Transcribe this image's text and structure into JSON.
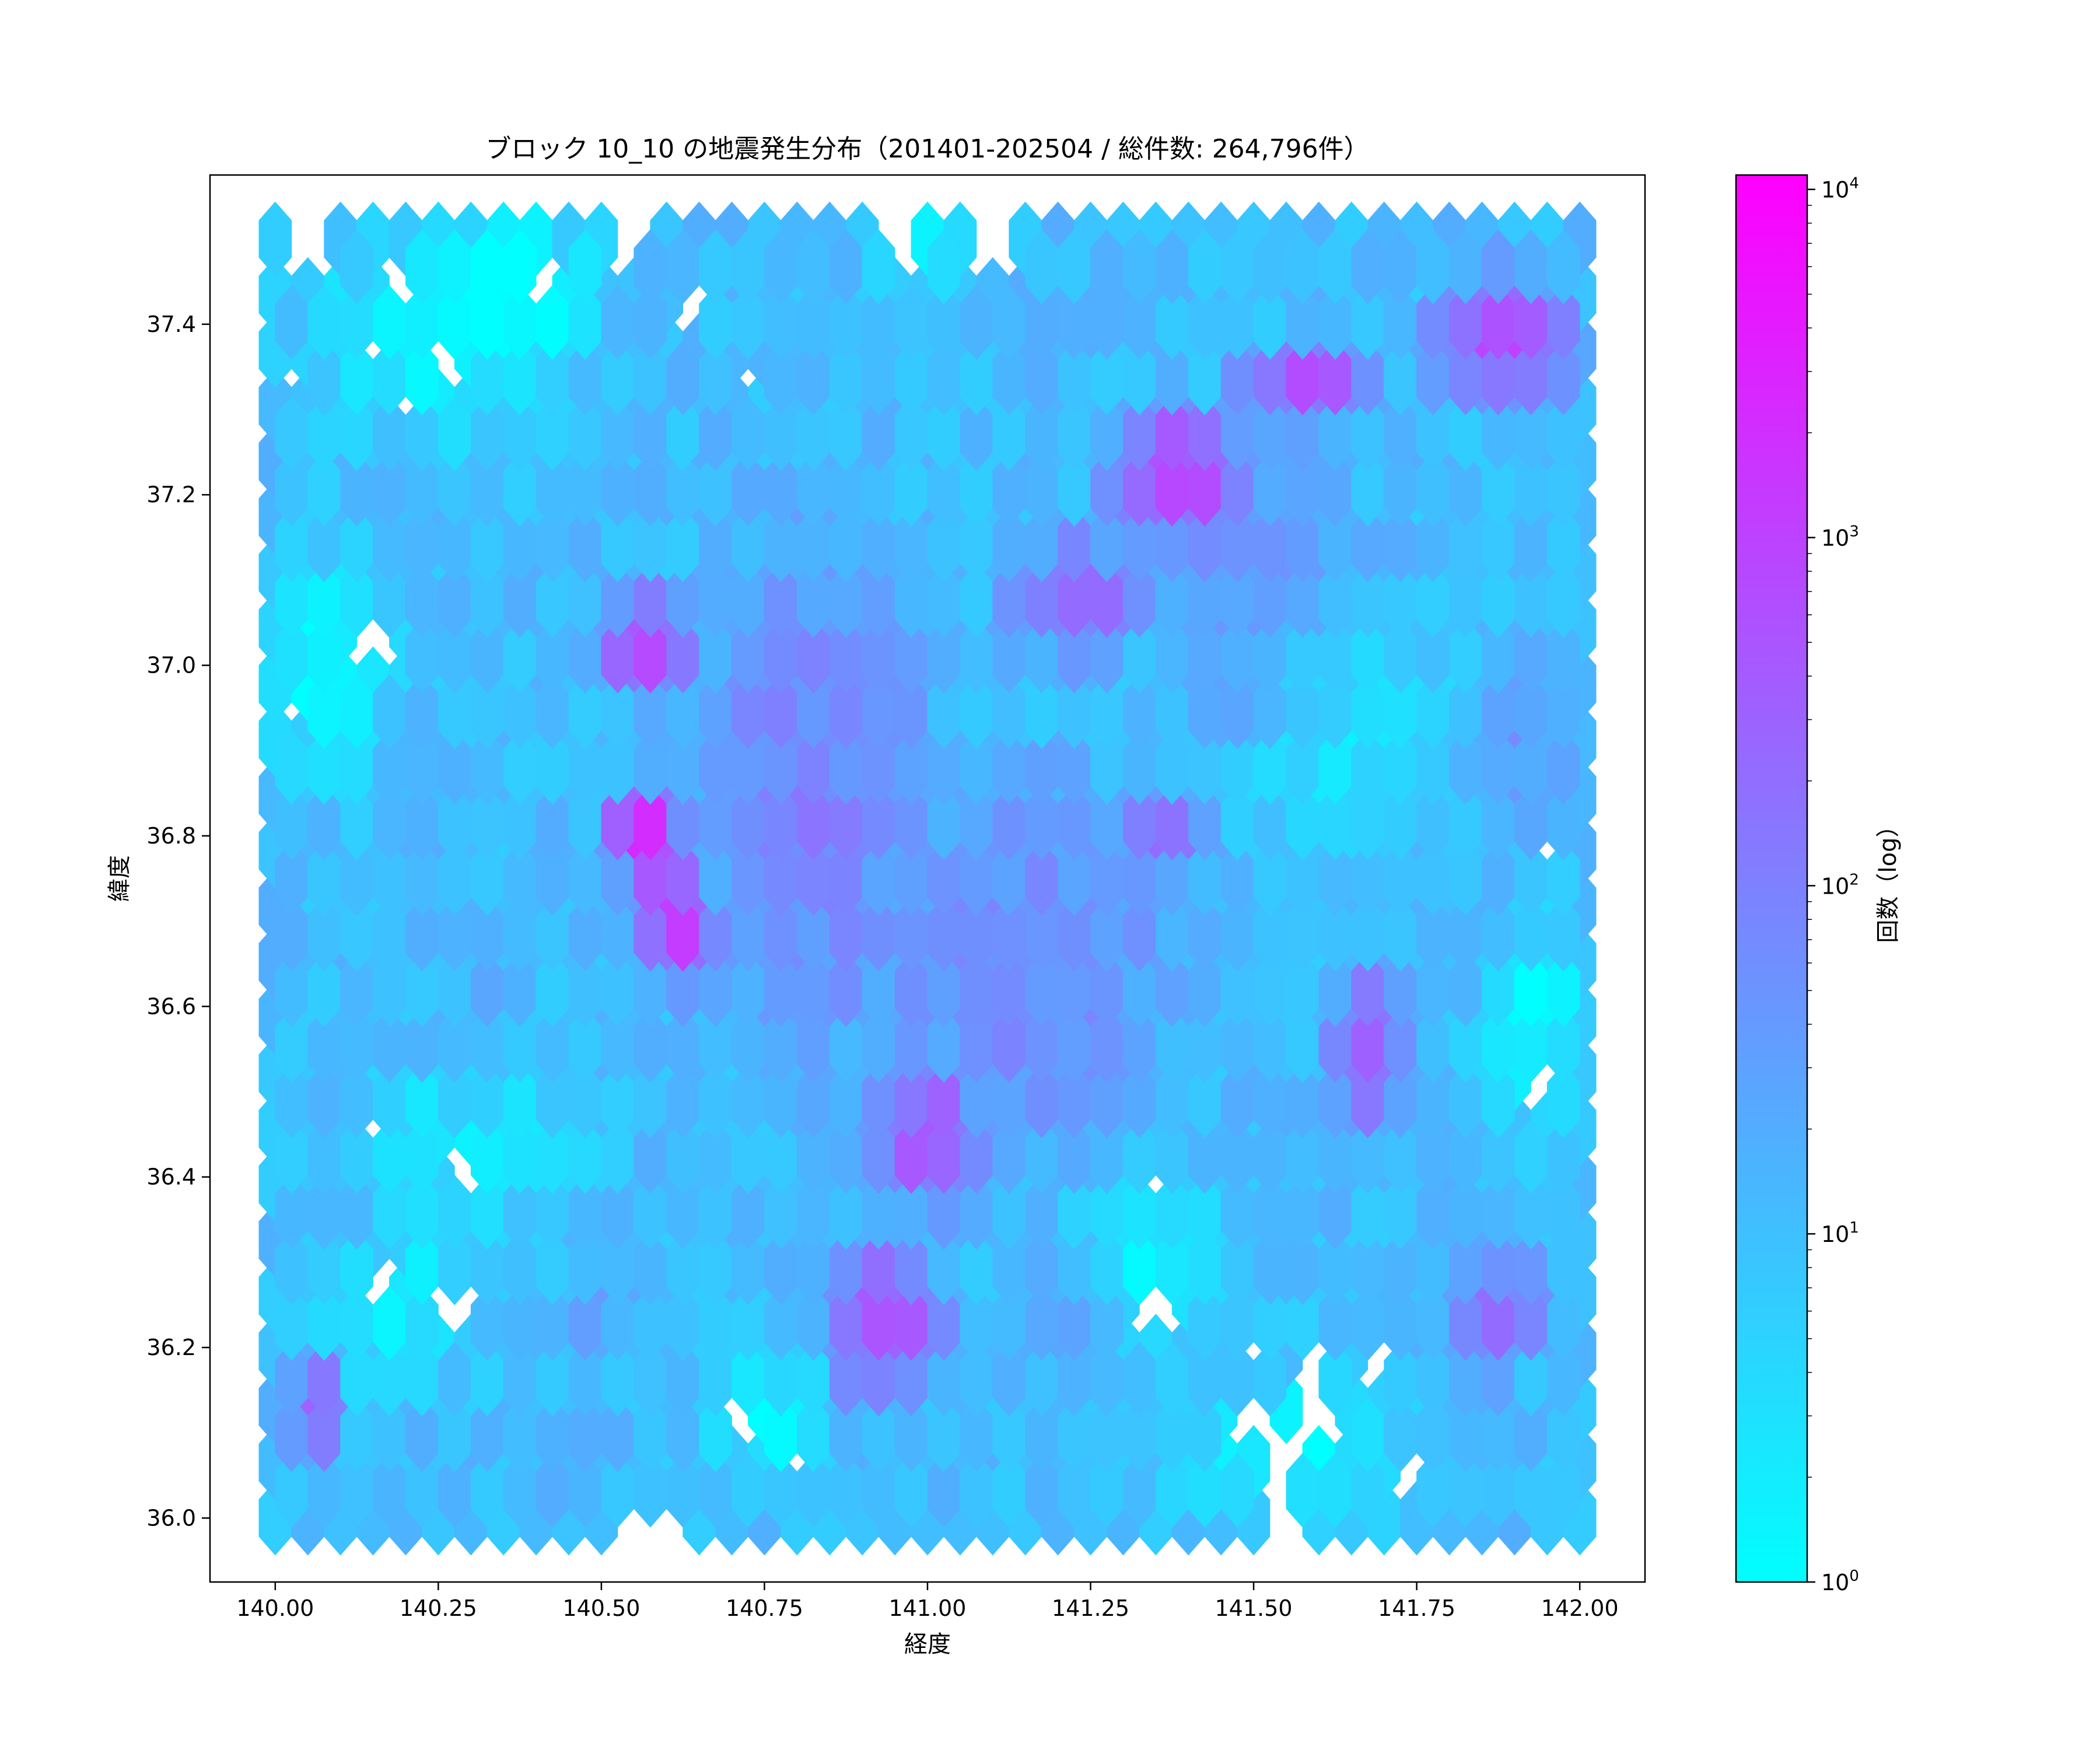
{
  "chart_data": {
    "type": "heatmap",
    "subtype": "hexbin",
    "title": "ブロック 10_10 の地震発生分布（201401-202504 / 総件数: 264,796件）",
    "xlabel": "経度",
    "ylabel": "緯度",
    "xlim": [
      139.9,
      142.1
    ],
    "ylim": [
      35.925,
      37.575
    ],
    "x_ticks": [
      "140.00",
      "140.25",
      "140.50",
      "140.75",
      "141.00",
      "141.25",
      "141.50",
      "141.75",
      "142.00"
    ],
    "y_ticks": [
      "36.0",
      "36.2",
      "36.4",
      "36.6",
      "36.8",
      "37.0",
      "37.2",
      "37.4"
    ],
    "colorbar": {
      "label": "回数（log）",
      "scale": "log",
      "range": [
        1,
        11000
      ],
      "ticks": [
        {
          "value": 1,
          "base": "10",
          "exp": "0"
        },
        {
          "value": 10,
          "base": "10",
          "exp": "1"
        },
        {
          "value": 100,
          "base": "10",
          "exp": "2"
        },
        {
          "value": 1000,
          "base": "10",
          "exp": "3"
        },
        {
          "value": 10000,
          "base": "10",
          "exp": "4"
        }
      ],
      "colormap_low": "#00ffff",
      "colormap_high": "#ff00ff"
    },
    "extent": {
      "lon": [
        140.0,
        142.0
      ],
      "lat": [
        36.0,
        37.5
      ]
    },
    "gridsize": 40,
    "background_log_count": 1.05,
    "hotspots": [
      {
        "lon": 140.57,
        "lat": 36.8,
        "log_count": 4.0,
        "sigma_lon": 0.05,
        "sigma_lat": 0.06
      },
      {
        "lon": 140.62,
        "lat": 36.7,
        "log_count": 3.8,
        "sigma_lon": 0.05,
        "sigma_lat": 0.06
      },
      {
        "lon": 140.57,
        "lat": 37.02,
        "log_count": 3.1,
        "sigma_lon": 0.07,
        "sigma_lat": 0.06
      },
      {
        "lon": 141.38,
        "lat": 37.22,
        "log_count": 3.2,
        "sigma_lon": 0.1,
        "sigma_lat": 0.08
      },
      {
        "lon": 141.23,
        "lat": 37.08,
        "log_count": 2.6,
        "sigma_lon": 0.12,
        "sigma_lat": 0.07
      },
      {
        "lon": 141.58,
        "lat": 37.33,
        "log_count": 3.0,
        "sigma_lon": 0.1,
        "sigma_lat": 0.05
      },
      {
        "lon": 141.88,
        "lat": 37.38,
        "log_count": 3.2,
        "sigma_lon": 0.1,
        "sigma_lat": 0.07
      },
      {
        "lon": 141.0,
        "lat": 36.45,
        "log_count": 2.9,
        "sigma_lon": 0.09,
        "sigma_lat": 0.08
      },
      {
        "lon": 140.93,
        "lat": 36.23,
        "log_count": 3.0,
        "sigma_lon": 0.09,
        "sigma_lat": 0.08
      },
      {
        "lon": 141.37,
        "lat": 36.8,
        "log_count": 2.6,
        "sigma_lon": 0.08,
        "sigma_lat": 0.05
      },
      {
        "lon": 140.06,
        "lat": 36.13,
        "log_count": 2.8,
        "sigma_lon": 0.05,
        "sigma_lat": 0.06
      },
      {
        "lon": 141.68,
        "lat": 36.55,
        "log_count": 2.6,
        "sigma_lon": 0.06,
        "sigma_lat": 0.1
      },
      {
        "lon": 141.88,
        "lat": 36.25,
        "log_count": 2.4,
        "sigma_lon": 0.08,
        "sigma_lat": 0.08
      },
      {
        "lon": 140.83,
        "lat": 36.85,
        "log_count": 2.1,
        "sigma_lon": 0.2,
        "sigma_lat": 0.35
      },
      {
        "lon": 141.15,
        "lat": 36.65,
        "log_count": 2.0,
        "sigma_lon": 0.25,
        "sigma_lat": 0.25
      },
      {
        "lon": 141.55,
        "lat": 37.05,
        "log_count": 1.9,
        "sigma_lon": 0.2,
        "sigma_lat": 0.2
      },
      {
        "lon": 140.3,
        "lat": 36.55,
        "log_count": 1.4,
        "sigma_lon": 0.15,
        "sigma_lat": 0.15
      },
      {
        "lon": 140.5,
        "lat": 36.25,
        "log_count": 1.4,
        "sigma_lon": 0.12,
        "sigma_lat": 0.12
      },
      {
        "lon": 141.2,
        "lat": 36.25,
        "log_count": 1.5,
        "sigma_lon": 0.12,
        "sigma_lat": 0.1
      },
      {
        "lon": 141.9,
        "lat": 36.9,
        "log_count": 1.7,
        "sigma_lon": 0.1,
        "sigma_lat": 0.15
      }
    ],
    "cold_zones": [
      {
        "lon": 140.25,
        "lat": 37.4,
        "sigma_lon": 0.12,
        "sigma_lat": 0.08,
        "depth": 1.0
      },
      {
        "lon": 140.08,
        "lat": 37.0,
        "sigma_lon": 0.07,
        "sigma_lat": 0.08,
        "depth": 1.0
      },
      {
        "lon": 140.3,
        "lat": 36.45,
        "sigma_lon": 0.1,
        "sigma_lat": 0.06,
        "depth": 0.9
      },
      {
        "lon": 140.2,
        "lat": 36.25,
        "sigma_lon": 0.08,
        "sigma_lat": 0.06,
        "depth": 0.8
      },
      {
        "lon": 141.55,
        "lat": 36.08,
        "sigma_lon": 0.1,
        "sigma_lat": 0.06,
        "depth": 1.0
      },
      {
        "lon": 141.62,
        "lat": 36.95,
        "sigma_lon": 0.1,
        "sigma_lat": 0.1,
        "depth": 0.9
      },
      {
        "lon": 141.93,
        "lat": 36.58,
        "sigma_lon": 0.05,
        "sigma_lat": 0.08,
        "depth": 1.0
      },
      {
        "lon": 141.35,
        "lat": 36.3,
        "sigma_lon": 0.07,
        "sigma_lat": 0.06,
        "depth": 0.8
      },
      {
        "lon": 140.75,
        "lat": 36.12,
        "sigma_lon": 0.06,
        "sigma_lat": 0.05,
        "depth": 0.9
      },
      {
        "lon": 140.4,
        "lat": 37.45,
        "sigma_lon": 0.06,
        "sigma_lat": 0.05,
        "depth": 0.8
      },
      {
        "lon": 141.0,
        "lat": 37.48,
        "sigma_lon": 0.06,
        "sigma_lat": 0.04,
        "depth": 0.7
      }
    ],
    "empty_cells": [
      [
        140.19,
        37.45
      ],
      [
        140.41,
        37.45
      ],
      [
        140.64,
        37.42
      ],
      [
        140.15,
        37.36
      ],
      [
        140.23,
        37.36
      ],
      [
        140.21,
        37.3
      ],
      [
        140.28,
        37.33
      ],
      [
        140.72,
        37.33
      ],
      [
        140.03,
        37.33
      ],
      [
        140.13,
        37.05
      ],
      [
        140.15,
        37.02
      ],
      [
        140.03,
        36.95
      ],
      [
        140.17,
        36.46
      ],
      [
        140.28,
        36.41
      ],
      [
        140.17,
        36.28
      ],
      [
        140.28,
        36.24
      ],
      [
        140.26,
        36.26
      ],
      [
        140.69,
        36.14
      ],
      [
        140.74,
        36.09
      ],
      [
        140.78,
        36.07
      ],
      [
        141.93,
        36.78
      ],
      [
        141.93,
        36.53
      ],
      [
        141.93,
        36.49
      ],
      [
        141.35,
        36.39
      ],
      [
        141.35,
        36.24
      ],
      [
        141.48,
        36.19
      ],
      [
        141.52,
        36.19
      ],
      [
        141.58,
        36.18
      ],
      [
        141.68,
        36.18
      ],
      [
        141.5,
        36.12
      ],
      [
        141.56,
        36.08
      ],
      [
        141.59,
        36.12
      ],
      [
        141.61,
        36.1
      ],
      [
        141.74,
        36.05
      ],
      [
        141.53,
        36.04
      ],
      [
        140.53,
        36.0
      ],
      [
        140.61,
        36.0
      ],
      [
        141.53,
        36.0
      ],
      [
        140.53,
        37.48
      ],
      [
        140.96,
        37.48
      ],
      [
        141.1,
        37.48
      ],
      [
        140.05,
        37.48
      ]
    ]
  }
}
